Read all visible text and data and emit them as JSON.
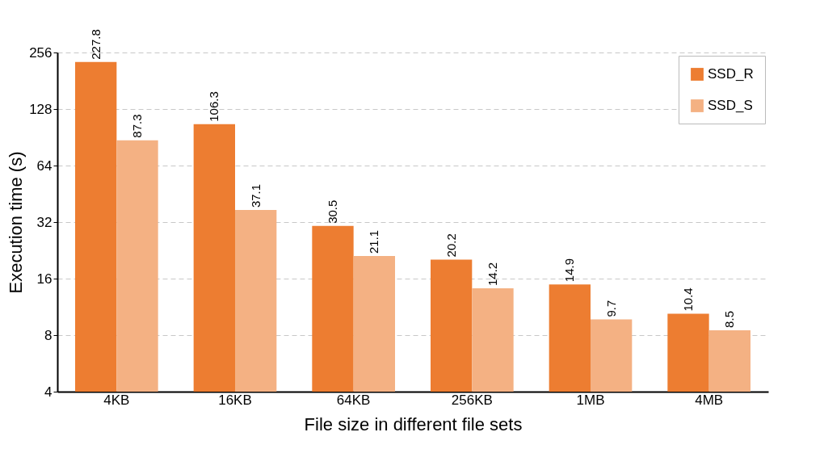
{
  "chart_data": {
    "type": "bar",
    "xlabel": "File size in different file sets",
    "ylabel": "Execution time (s)",
    "categories": [
      "4KB",
      "16KB",
      "64KB",
      "256KB",
      "1MB",
      "4MB"
    ],
    "series": [
      {
        "name": "SSD_R",
        "color": "#ed7d31",
        "values": [
          227.8,
          106.3,
          30.5,
          20.2,
          14.9,
          10.4
        ]
      },
      {
        "name": "SSD_S",
        "color": "#f4b183",
        "values": [
          87.3,
          37.1,
          21.1,
          14.2,
          9.7,
          8.5
        ]
      }
    ],
    "log": "y",
    "ylim": [
      4,
      256
    ],
    "yticks": [
      4,
      8,
      16,
      32,
      64,
      128,
      256
    ],
    "grid": "y",
    "legend": "top right",
    "data_labels": true
  }
}
